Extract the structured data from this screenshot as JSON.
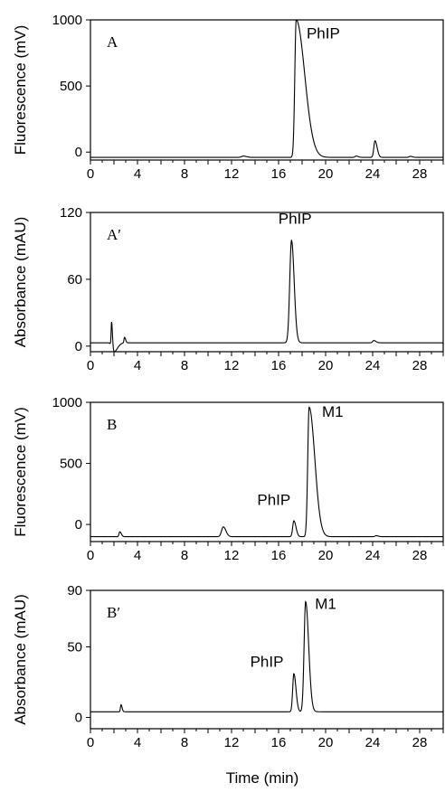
{
  "chart_data": [
    {
      "type": "line",
      "panel_label": "A",
      "ylabel": "Fluorescence (mV)",
      "ylim": [
        -60,
        1000
      ],
      "yticks": [
        0,
        500,
        1000
      ],
      "xlim": [
        0,
        30
      ],
      "xticks": [
        0,
        4,
        8,
        12,
        16,
        20,
        24,
        28
      ],
      "grid": false,
      "baseline": -40,
      "peaks": [
        {
          "x": 13.0,
          "height": 10,
          "width": 0.15
        },
        {
          "x": 17.5,
          "height": 1040,
          "width": 0.12,
          "tail": 6,
          "clip": true
        },
        {
          "x": 22.6,
          "height": 10,
          "width": 0.1
        },
        {
          "x": 24.2,
          "height": 125,
          "width": 0.1
        },
        {
          "x": 27.2,
          "height": 8,
          "width": 0.1
        }
      ],
      "annotations": [
        {
          "text": "PhIP",
          "x": 19.8,
          "y": 860
        }
      ]
    },
    {
      "type": "line",
      "panel_label": "A′",
      "ylabel": "Absorbance (mAU)",
      "ylim": [
        -5,
        120
      ],
      "yticks": [
        0,
        60,
        120
      ],
      "xlim": [
        0,
        30
      ],
      "xticks": [
        0,
        4,
        8,
        12,
        16,
        20,
        24,
        28
      ],
      "grid": false,
      "baseline": 3,
      "peaks": [
        {
          "x": 1.8,
          "height": 22,
          "width": 0.04
        },
        {
          "x": 2.0,
          "height": -8,
          "width": 0.15,
          "tail": 2
        },
        {
          "x": 2.9,
          "height": 5,
          "width": 0.05
        },
        {
          "x": 17.1,
          "height": 92,
          "width": 0.15,
          "tail": 1.5
        },
        {
          "x": 24.1,
          "height": 2,
          "width": 0.1
        }
      ],
      "annotations": [
        {
          "text": "PhIP",
          "x": 17.4,
          "y": 110
        }
      ]
    },
    {
      "type": "line",
      "panel_label": "B",
      "ylabel": "Fluorescence (mV)",
      "ylim": [
        -140,
        1000
      ],
      "yticks": [
        0,
        500,
        1000
      ],
      "xlim": [
        0,
        30
      ],
      "xticks": [
        0,
        4,
        8,
        12,
        16,
        20,
        24,
        28
      ],
      "grid": false,
      "baseline": -100,
      "peaks": [
        {
          "x": 2.5,
          "height": 40,
          "width": 0.07
        },
        {
          "x": 11.3,
          "height": 80,
          "width": 0.15,
          "tail": 1.5
        },
        {
          "x": 17.3,
          "height": 130,
          "width": 0.1
        },
        {
          "x": 18.6,
          "height": 1060,
          "width": 0.12,
          "tail": 4
        },
        {
          "x": 24.3,
          "height": 8,
          "width": 0.1
        }
      ],
      "annotations": [
        {
          "text": "M1",
          "x": 20.6,
          "y": 880
        },
        {
          "text": "PhIP",
          "x": 15.6,
          "y": 160
        }
      ]
    },
    {
      "type": "line",
      "panel_label": "B′",
      "ylabel": "Absorbance (mAU)",
      "ylim": [
        -8,
        90
      ],
      "yticks": [
        0,
        50,
        90
      ],
      "xlim": [
        0,
        30
      ],
      "xticks": [
        0,
        4,
        8,
        12,
        16,
        20,
        24,
        28
      ],
      "xlabel": "Time (min)",
      "grid": false,
      "baseline": 4,
      "peaks": [
        {
          "x": 2.6,
          "height": 5,
          "width": 0.05
        },
        {
          "x": 17.3,
          "height": 27,
          "width": 0.1
        },
        {
          "x": 18.3,
          "height": 78,
          "width": 0.13,
          "tail": 2
        }
      ],
      "annotations": [
        {
          "text": "M1",
          "x": 20.0,
          "y": 77
        },
        {
          "text": "PhIP",
          "x": 15.0,
          "y": 36
        }
      ]
    }
  ]
}
